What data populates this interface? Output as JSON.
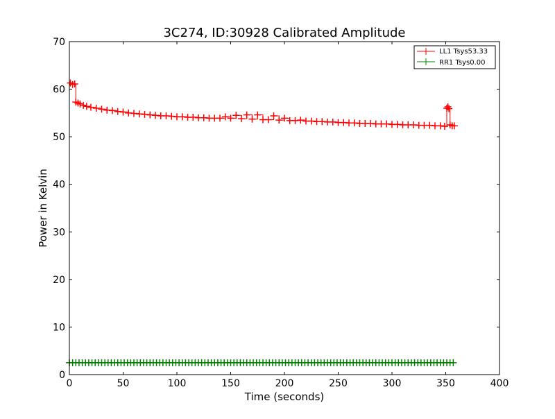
{
  "chart_data": {
    "type": "line",
    "title": "3C274, ID:30928 Calibrated Amplitude",
    "xlabel": "Time (seconds)",
    "ylabel": "Power in Kelvin",
    "xlim": [
      0,
      400
    ],
    "ylim": [
      0,
      70
    ],
    "xticks": [
      0,
      50,
      100,
      150,
      200,
      250,
      300,
      350,
      400
    ],
    "yticks": [
      0,
      10,
      20,
      30,
      40,
      50,
      60,
      70
    ],
    "grid": false,
    "legend_position": "top-right",
    "series": [
      {
        "name": "LL1 Tsys53.33",
        "color": "#ff0000",
        "marker": "plus",
        "x": [
          1,
          3,
          5,
          6,
          8,
          10,
          13,
          16,
          20,
          25,
          30,
          35,
          40,
          45,
          50,
          55,
          60,
          65,
          70,
          75,
          80,
          85,
          90,
          95,
          100,
          105,
          110,
          115,
          120,
          125,
          130,
          135,
          140,
          145,
          150,
          155,
          160,
          165,
          170,
          175,
          180,
          185,
          190,
          195,
          200,
          205,
          210,
          215,
          220,
          225,
          230,
          235,
          240,
          245,
          250,
          255,
          260,
          265,
          270,
          275,
          280,
          285,
          290,
          295,
          300,
          305,
          310,
          315,
          320,
          325,
          330,
          335,
          340,
          345,
          349,
          351,
          352,
          353,
          354,
          356,
          358
        ],
        "y": [
          61.3,
          61.0,
          61.1,
          57.3,
          57.1,
          56.9,
          56.6,
          56.4,
          56.2,
          56.0,
          55.8,
          55.6,
          55.5,
          55.3,
          55.2,
          55.0,
          54.9,
          54.8,
          54.7,
          54.6,
          54.5,
          54.4,
          54.4,
          54.3,
          54.2,
          54.2,
          54.1,
          54.1,
          54.0,
          54.0,
          53.9,
          53.9,
          53.9,
          54.2,
          53.9,
          54.5,
          53.8,
          54.6,
          53.7,
          54.6,
          53.6,
          53.6,
          54.4,
          53.5,
          53.9,
          53.4,
          53.4,
          53.5,
          53.3,
          53.3,
          53.2,
          53.2,
          53.1,
          53.1,
          53.0,
          53.0,
          52.9,
          52.9,
          52.8,
          52.8,
          52.8,
          52.7,
          52.7,
          52.7,
          52.6,
          52.6,
          52.5,
          52.5,
          52.5,
          52.4,
          52.4,
          52.4,
          52.3,
          52.3,
          52.2,
          56.0,
          56.3,
          55.9,
          52.5,
          52.3,
          52.3
        ]
      },
      {
        "name": "RR1 Tsys0.00",
        "color": "#008000",
        "marker": "plus",
        "x": [
          0,
          3,
          6,
          9,
          12,
          15,
          18,
          21,
          24,
          27,
          30,
          33,
          36,
          39,
          42,
          45,
          48,
          51,
          54,
          57,
          60,
          63,
          66,
          69,
          72,
          75,
          78,
          81,
          84,
          87,
          90,
          93,
          96,
          99,
          102,
          105,
          108,
          111,
          114,
          117,
          120,
          123,
          126,
          129,
          132,
          135,
          138,
          141,
          144,
          147,
          150,
          153,
          156,
          159,
          162,
          165,
          168,
          171,
          174,
          177,
          180,
          183,
          186,
          189,
          192,
          195,
          198,
          201,
          204,
          207,
          210,
          213,
          216,
          219,
          222,
          225,
          228,
          231,
          234,
          237,
          240,
          243,
          246,
          249,
          252,
          255,
          258,
          261,
          264,
          267,
          270,
          273,
          276,
          279,
          282,
          285,
          288,
          291,
          294,
          297,
          300,
          303,
          306,
          309,
          312,
          315,
          318,
          321,
          324,
          327,
          330,
          333,
          336,
          339,
          342,
          345,
          348,
          351,
          354,
          357
        ],
        "y": [
          2.5,
          2.5,
          2.5,
          2.5,
          2.5,
          2.5,
          2.5,
          2.5,
          2.5,
          2.5,
          2.5,
          2.5,
          2.5,
          2.5,
          2.5,
          2.5,
          2.5,
          2.5,
          2.5,
          2.5,
          2.5,
          2.5,
          2.5,
          2.5,
          2.5,
          2.5,
          2.5,
          2.5,
          2.5,
          2.5,
          2.5,
          2.5,
          2.5,
          2.5,
          2.5,
          2.5,
          2.5,
          2.5,
          2.5,
          2.5,
          2.5,
          2.5,
          2.5,
          2.5,
          2.5,
          2.5,
          2.5,
          2.5,
          2.5,
          2.5,
          2.5,
          2.5,
          2.5,
          2.5,
          2.5,
          2.5,
          2.5,
          2.5,
          2.5,
          2.5,
          2.5,
          2.5,
          2.5,
          2.5,
          2.5,
          2.5,
          2.5,
          2.5,
          2.5,
          2.5,
          2.5,
          2.5,
          2.5,
          2.5,
          2.5,
          2.5,
          2.5,
          2.5,
          2.5,
          2.5,
          2.5,
          2.5,
          2.5,
          2.5,
          2.5,
          2.5,
          2.5,
          2.5,
          2.5,
          2.5,
          2.5,
          2.5,
          2.5,
          2.5,
          2.5,
          2.5,
          2.5,
          2.5,
          2.5,
          2.5,
          2.5,
          2.5,
          2.5,
          2.5,
          2.5,
          2.5,
          2.5,
          2.5,
          2.5,
          2.5,
          2.5,
          2.5,
          2.5,
          2.5,
          2.5,
          2.5,
          2.5,
          2.5,
          2.5,
          2.5
        ]
      }
    ]
  }
}
